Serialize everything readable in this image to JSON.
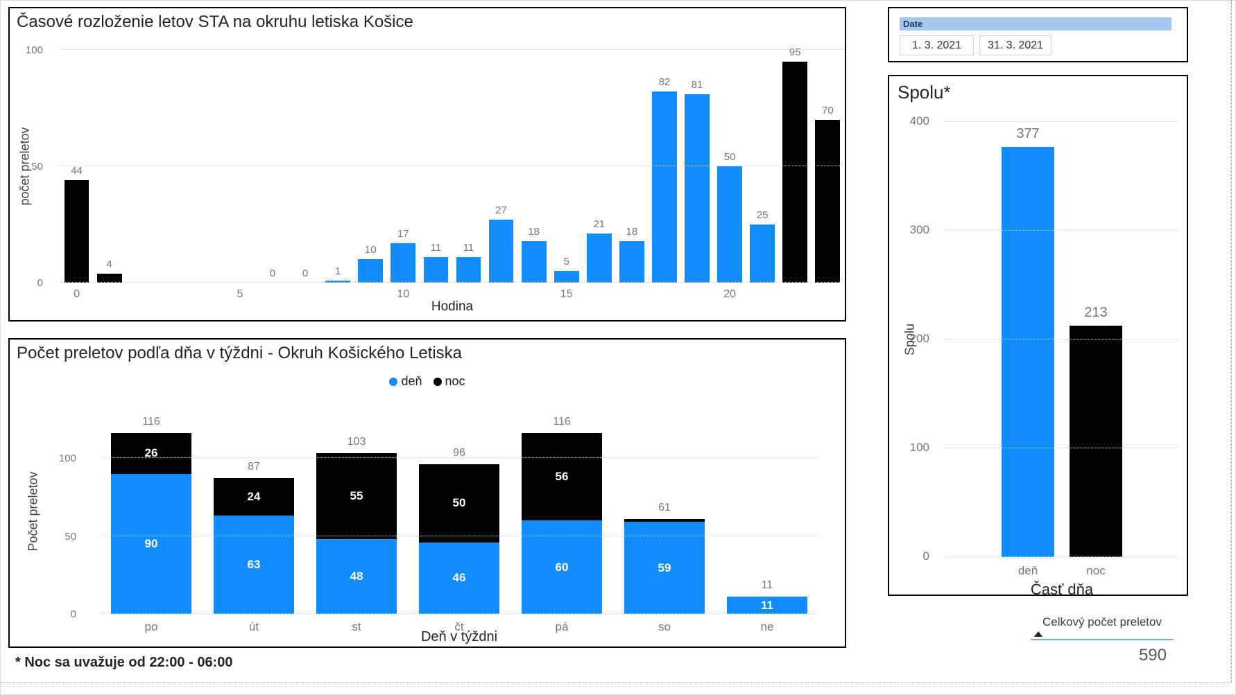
{
  "page": {
    "note": "* Noc sa uvažuje od 22:00 - 06:00"
  },
  "colors": {
    "day": "#118DFF",
    "night": "#000000",
    "slicer_header_bg": "#A3C7EE",
    "card_underline": "#79AEE4",
    "data_label": "#777777"
  },
  "slicer": {
    "header": "Date",
    "start_date": "1. 3. 2021",
    "end_date": "31. 3. 2021"
  },
  "card": {
    "header": "Celkový počet preletov",
    "value": "590"
  },
  "chart_data": [
    {
      "id": "hourly",
      "type": "bar",
      "title": "Časové rozloženie letov STA na okruhu letiska Košice",
      "xlabel": "Hodina",
      "ylabel": "počet preletov",
      "x": [
        0,
        1,
        2,
        3,
        4,
        5,
        6,
        7,
        8,
        9,
        10,
        11,
        12,
        13,
        14,
        15,
        16,
        17,
        18,
        19,
        20,
        21,
        22,
        23
      ],
      "values": [
        44,
        4,
        null,
        null,
        null,
        null,
        0,
        0,
        1,
        10,
        17,
        11,
        11,
        27,
        18,
        5,
        21,
        18,
        82,
        81,
        50,
        25,
        95,
        70
      ],
      "night_hours": [
        0,
        1,
        22,
        23
      ],
      "series_colors": {
        "day": "#118DFF",
        "night": "#000000"
      },
      "yticks": [
        0,
        50,
        100
      ],
      "xticks": [
        0,
        5,
        10,
        15,
        20
      ],
      "ylim": [
        0,
        100
      ],
      "grid": "dotted"
    },
    {
      "id": "weekday",
      "type": "stacked-bar",
      "title": "Počet preletov podľa dňa v týždni - Okruh Košického Letiska",
      "xlabel": "Deň v týždni",
      "ylabel": "Počet preletov",
      "categories": [
        "po",
        "út",
        "st",
        "čt",
        "pá",
        "so",
        "ne"
      ],
      "series": [
        {
          "name": "deň",
          "color": "#118DFF",
          "values": [
            90,
            63,
            48,
            46,
            60,
            59,
            11
          ]
        },
        {
          "name": "noc",
          "color": "#000000",
          "values": [
            26,
            24,
            55,
            50,
            56,
            2,
            0
          ]
        }
      ],
      "totals": [
        116,
        87,
        103,
        96,
        116,
        61,
        11
      ],
      "yticks": [
        0,
        50,
        100
      ],
      "ylim": [
        0,
        130
      ],
      "legend_position": "top-center",
      "grid": "dotted"
    },
    {
      "id": "spolu",
      "type": "bar",
      "title": "Spolu*",
      "xlabel": "Časť dňa",
      "ylabel": "Spolu",
      "categories": [
        "deň",
        "noc"
      ],
      "values": [
        377,
        213
      ],
      "bar_colors": [
        "#118DFF",
        "#000000"
      ],
      "yticks": [
        0,
        100,
        200,
        300,
        400
      ],
      "ylim": [
        0,
        400
      ],
      "grid": "dotted"
    }
  ]
}
